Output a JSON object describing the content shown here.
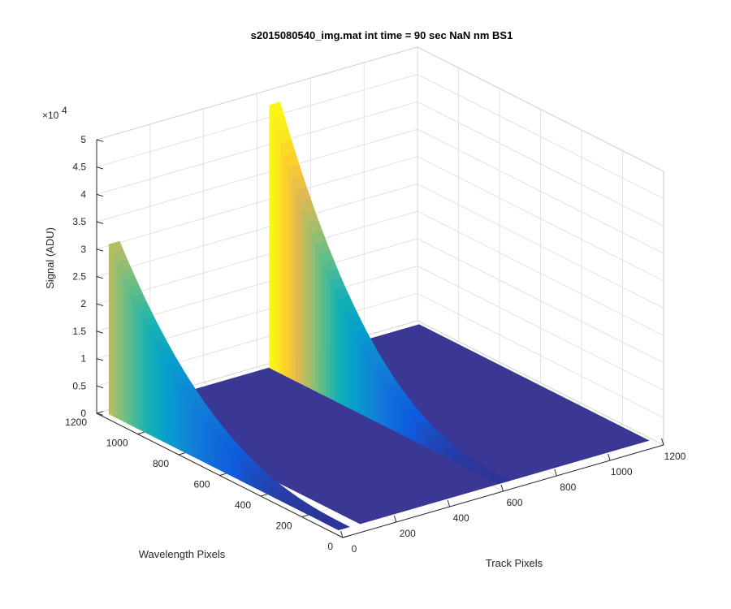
{
  "chart_data": {
    "type": "surface",
    "title": "s2015080540_img.mat int time = 90 sec  NaN nm BS1",
    "xlabel": "Track Pixels",
    "ylabel": "Wavelength Pixels",
    "zlabel": "Signal (ADU)",
    "z_exponent_label": "×10",
    "z_exponent_power": "4",
    "xlim": [
      0,
      1200
    ],
    "ylim": [
      0,
      1200
    ],
    "zlim": [
      0,
      50000
    ],
    "x_ticks": [
      "0",
      "200",
      "400",
      "600",
      "800",
      "1000",
      "1200"
    ],
    "y_ticks": [
      "0",
      "200",
      "400",
      "600",
      "800",
      "1000",
      "1200"
    ],
    "z_ticks": [
      "0",
      "0.5",
      "1",
      "1.5",
      "2",
      "2.5",
      "3",
      "3.5",
      "4",
      "4.5",
      "5"
    ],
    "grid": true,
    "baseline_signal": 1000,
    "peaks": [
      {
        "track_pixel": 0,
        "wavelength_pixels": [
          1140,
          20
        ],
        "peak_signal": 32000
      },
      {
        "track_pixel": 600,
        "wavelength_pixels": [
          1140,
          20
        ],
        "peak_signal": 49000
      }
    ]
  }
}
